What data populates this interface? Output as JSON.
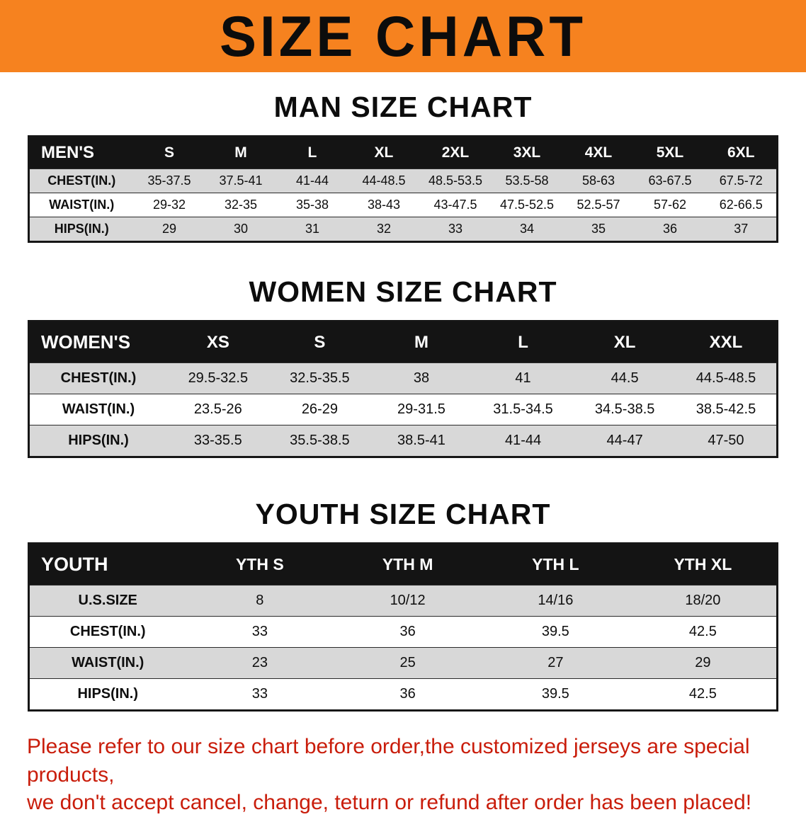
{
  "colors": {
    "accent": "#f6821f",
    "header-bg": "#141414",
    "row-gray": "#d8d8d8",
    "warning-red": "#c91d0b"
  },
  "banner": {
    "title": "SIZE CHART"
  },
  "sections": [
    {
      "heading": "MAN SIZE CHART",
      "table": {
        "header": [
          "MEN'S",
          "S",
          "M",
          "L",
          "XL",
          "2XL",
          "3XL",
          "4XL",
          "5XL",
          "6XL"
        ],
        "rows": [
          [
            "CHEST(IN.)",
            "35-37.5",
            "37.5-41",
            "41-44",
            "44-48.5",
            "48.5-53.5",
            "53.5-58",
            "58-63",
            "63-67.5",
            "67.5-72"
          ],
          [
            "WAIST(IN.)",
            "29-32",
            "32-35",
            "35-38",
            "38-43",
            "43-47.5",
            "47.5-52.5",
            "52.5-57",
            "57-62",
            "62-66.5"
          ],
          [
            "HIPS(IN.)",
            "29",
            "30",
            "31",
            "32",
            "33",
            "34",
            "35",
            "36",
            "37"
          ]
        ]
      }
    },
    {
      "heading": "WOMEN SIZE CHART",
      "table": {
        "header": [
          "WOMEN'S",
          "XS",
          "S",
          "M",
          "L",
          "XL",
          "XXL"
        ],
        "rows": [
          [
            "CHEST(IN.)",
            "29.5-32.5",
            "32.5-35.5",
            "38",
            "41",
            "44.5",
            "44.5-48.5"
          ],
          [
            "WAIST(IN.)",
            "23.5-26",
            "26-29",
            "29-31.5",
            "31.5-34.5",
            "34.5-38.5",
            "38.5-42.5"
          ],
          [
            "HIPS(IN.)",
            "33-35.5",
            "35.5-38.5",
            "38.5-41",
            "41-44",
            "44-47",
            "47-50"
          ]
        ]
      }
    },
    {
      "heading": "YOUTH SIZE CHART",
      "table": {
        "header": [
          "YOUTH",
          "YTH S",
          "YTH M",
          "YTH L",
          "YTH XL"
        ],
        "rows": [
          [
            "U.S.SIZE",
            "8",
            "10/12",
            "14/16",
            "18/20"
          ],
          [
            "CHEST(IN.)",
            "33",
            "36",
            "39.5",
            "42.5"
          ],
          [
            "WAIST(IN.)",
            "23",
            "25",
            "27",
            "29"
          ],
          [
            "HIPS(IN.)",
            "33",
            "36",
            "39.5",
            "42.5"
          ]
        ]
      }
    }
  ],
  "footer": {
    "line1": "Please refer to our size chart before order,the customized jerseys are special products,",
    "line2": "we don't accept cancel, change, teturn or refund after order has been placed!"
  }
}
